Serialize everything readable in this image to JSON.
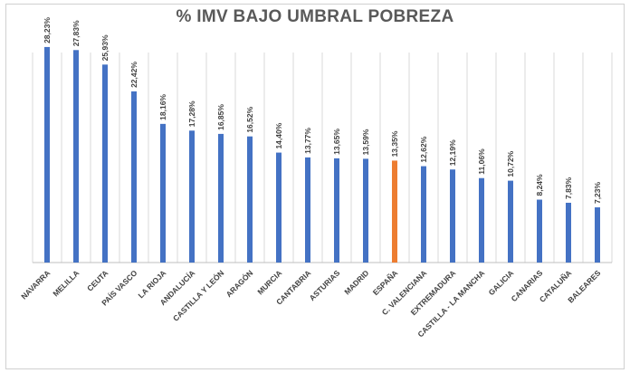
{
  "chart_data": {
    "type": "bar",
    "title": "% IMV BAJO UMBRAL POBREZA",
    "categories": [
      "NAVARRA",
      "MELILLA",
      "CEUTA",
      "PAÍS VASCO",
      "LA RIOJA",
      "ANDALUCÍA",
      "CASTILLA Y LEÓN",
      "ARAGÓN",
      "MURCIA",
      "CANTABRIA",
      "ASTURIAS",
      "MADRID",
      "ESPAÑA",
      "C. VALENCIANA",
      "EXTREMADURA",
      "CASTILLA - LA MANCHA",
      "GALICIA",
      "CANARIAS",
      "CATALUÑA",
      "BALEARES"
    ],
    "values": [
      28.23,
      27.83,
      25.93,
      22.42,
      18.16,
      17.28,
      16.85,
      16.52,
      14.4,
      13.77,
      13.65,
      13.59,
      13.35,
      12.62,
      12.19,
      11.06,
      10.72,
      8.24,
      7.83,
      7.23
    ],
    "data_labels": [
      "28,23%",
      "27,83%",
      "25,93%",
      "22,42%",
      "18,16%",
      "17,28%",
      "16,85%",
      "16,52%",
      "14,40%",
      "13,77%",
      "13,65%",
      "13,59%",
      "13,35%",
      "12,62%",
      "12,19%",
      "11,06%",
      "10,72%",
      "8,24%",
      "7,83%",
      "7,23%"
    ],
    "highlight_index": 12,
    "colors": {
      "bar": "#4472c4",
      "highlight": "#ed7d31",
      "grid": "#d9d9d9"
    },
    "ylim": [
      0,
      30
    ],
    "grid": "vertical separators",
    "legend": "none"
  }
}
